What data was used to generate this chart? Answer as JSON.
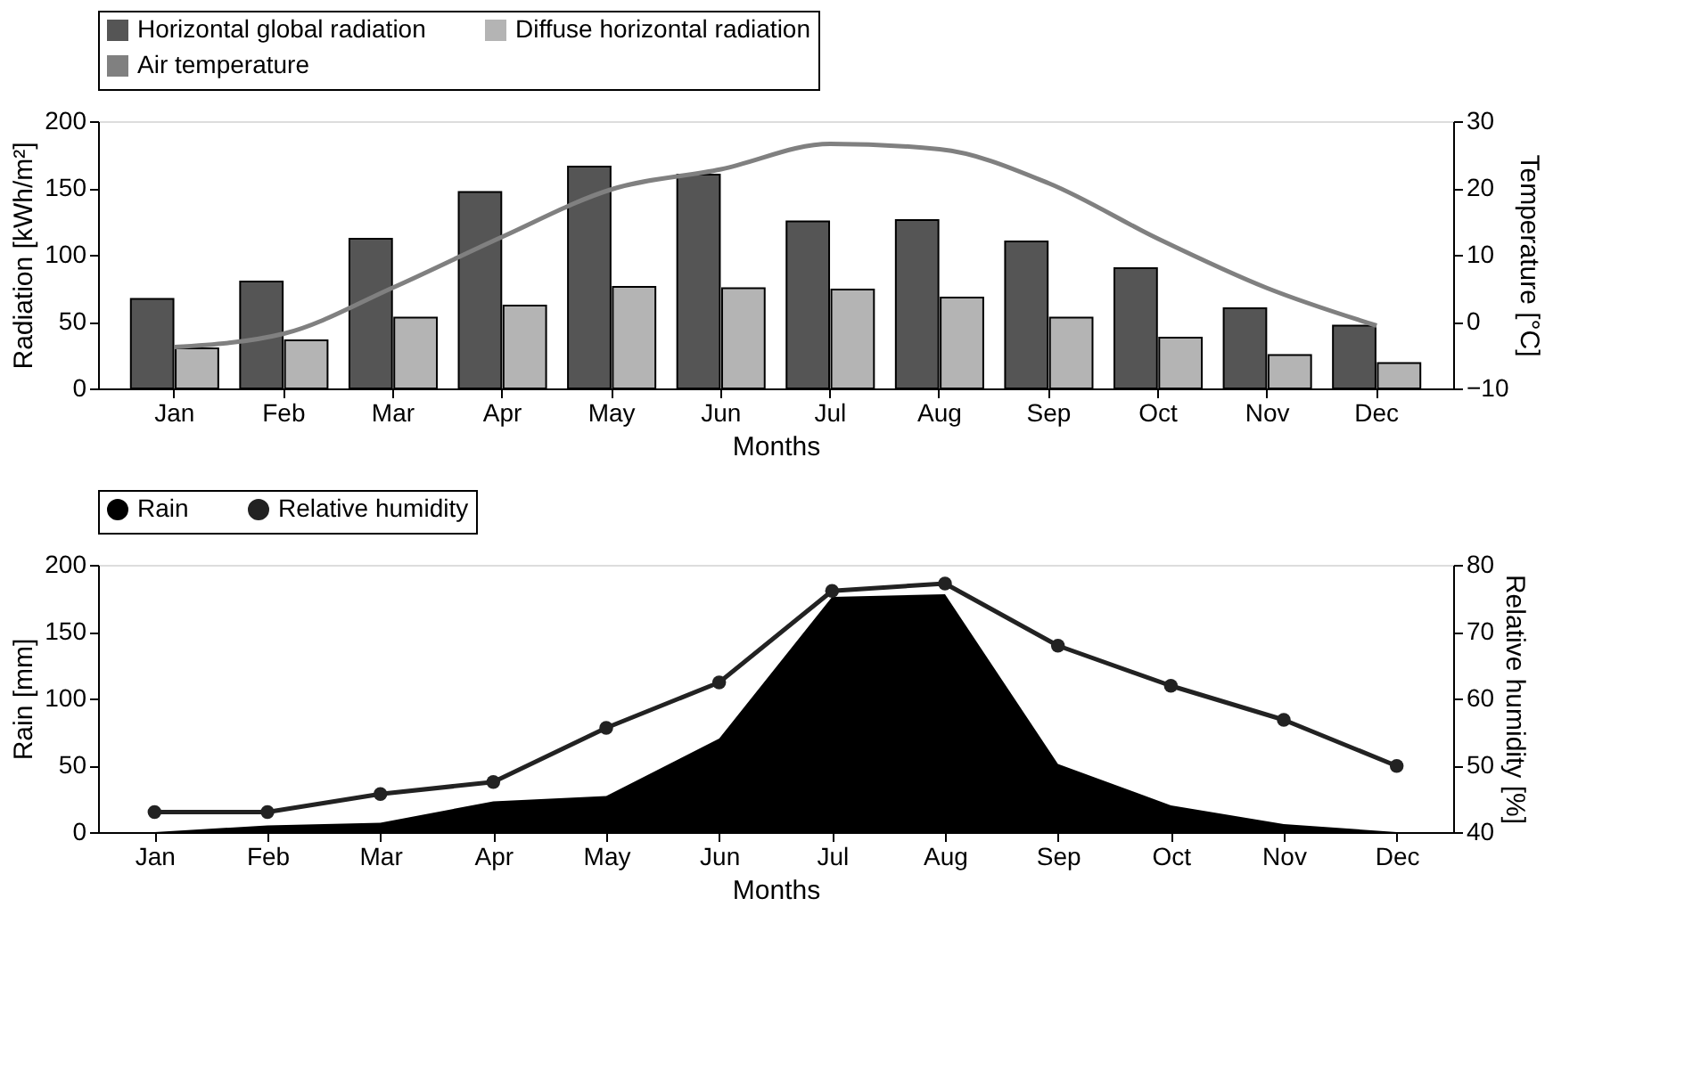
{
  "chart_data": [
    {
      "type": "bar",
      "categories": [
        "Jan",
        "Feb",
        "Mar",
        "Apr",
        "May",
        "Jun",
        "Jul",
        "Aug",
        "Sep",
        "Oct",
        "Nov",
        "Dec"
      ],
      "xlabel": "Months",
      "ylabel": "Radiation [kWh/m²]",
      "y2label": "Temperature [°C]",
      "ylim": [
        0,
        200
      ],
      "yticks": [
        0,
        50,
        100,
        150,
        200
      ],
      "y2lim": [
        -10,
        30
      ],
      "y2ticks": [
        -10,
        0,
        10,
        20,
        30
      ],
      "legend": "top",
      "grid": false,
      "series": [
        {
          "name": "Horizontal global radiation",
          "color": "#555555",
          "values": [
            67,
            80,
            112,
            147,
            166,
            160,
            125,
            126,
            110,
            90,
            60,
            47
          ]
        },
        {
          "name": "Diffuse horizontal radiation",
          "color": "#b4b4b4",
          "values": [
            30,
            36,
            53,
            62,
            76,
            75,
            74,
            68,
            53,
            38,
            25,
            19
          ]
        },
        {
          "name": "Air temperature",
          "color": "#808080",
          "type": "line",
          "axis": "y2",
          "marker": "none",
          "values": [
            -3.8,
            -1.8,
            5.1,
            12.7,
            19.8,
            22.8,
            26.6,
            25.8,
            20.7,
            12.4,
            5,
            -0.6
          ]
        }
      ]
    },
    {
      "type": "area",
      "categories": [
        "Jan",
        "Feb",
        "Mar",
        "Apr",
        "May",
        "Jun",
        "Jul",
        "Aug",
        "Sep",
        "Oct",
        "Nov",
        "Dec"
      ],
      "xlabel": "Months",
      "ylabel": "Rain [mm]",
      "y2label": "Relative humidity [%]",
      "ylim": [
        0,
        200
      ],
      "yticks": [
        0,
        50,
        100,
        150,
        200
      ],
      "y2lim": [
        40,
        80
      ],
      "y2ticks": [
        40,
        50,
        60,
        70,
        80
      ],
      "legend": "top",
      "grid": false,
      "series": [
        {
          "name": "Rain",
          "color": "#000000",
          "values": [
            0,
            5,
            7,
            23,
            27,
            70,
            176,
            178,
            51,
            20,
            6,
            0
          ]
        },
        {
          "name": "Relative humidity",
          "color": "#222222",
          "type": "line",
          "axis": "y2",
          "marker": "circle",
          "values": [
            43,
            43,
            45.7,
            47.5,
            55.6,
            62.4,
            76.1,
            77.2,
            67.9,
            61.9,
            56.8,
            49.9
          ]
        }
      ]
    }
  ]
}
